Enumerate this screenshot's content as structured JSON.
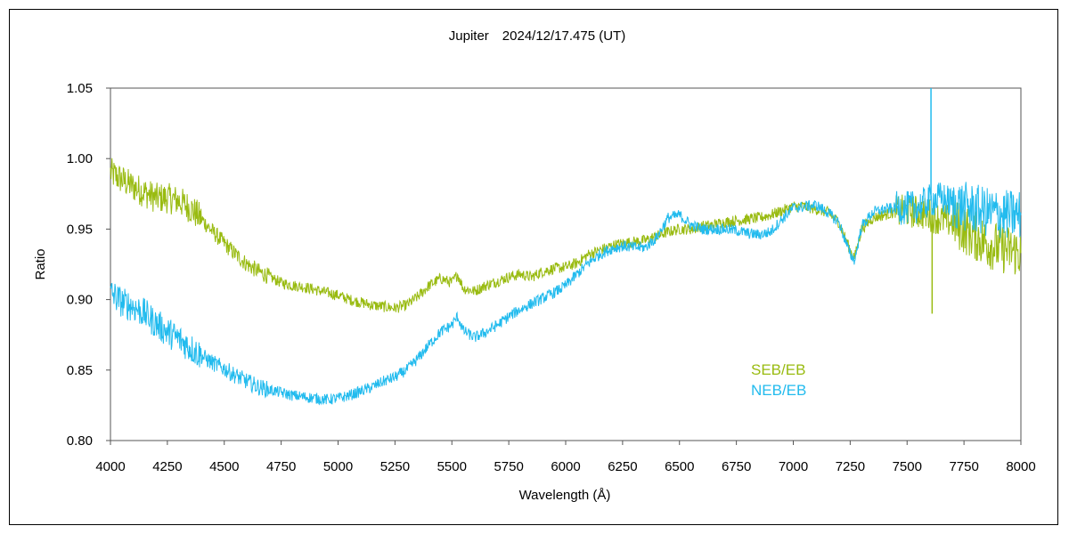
{
  "chart_data": {
    "type": "line",
    "title": "Jupiter　2024/12/17.475 (UT)",
    "xlabel": "Wavelength (Å)",
    "ylabel": "Ratio",
    "xlim": [
      4000,
      8000
    ],
    "ylim": [
      0.8,
      1.05
    ],
    "x_ticks": [
      "4000",
      "4250",
      "4500",
      "4750",
      "5000",
      "5250",
      "5500",
      "5750",
      "6000",
      "6250",
      "6500",
      "6750",
      "7000",
      "7250",
      "7500",
      "7750",
      "8000"
    ],
    "y_ticks": [
      "0.80",
      "0.85",
      "0.90",
      "0.95",
      "1.00",
      "1.05"
    ],
    "grid": false,
    "legend_position": "inside-bottom-right",
    "series": [
      {
        "name": "SEB/EB",
        "color": "#99bb11",
        "x": [
          4000,
          4050,
          4100,
          4150,
          4200,
          4250,
          4300,
          4350,
          4400,
          4450,
          4500,
          4550,
          4600,
          4650,
          4700,
          4750,
          4800,
          4850,
          4900,
          4950,
          5000,
          5050,
          5100,
          5150,
          5200,
          5250,
          5300,
          5350,
          5400,
          5450,
          5500,
          5525,
          5550,
          5600,
          5650,
          5700,
          5750,
          5800,
          5850,
          5900,
          5950,
          6000,
          6050,
          6100,
          6150,
          6200,
          6250,
          6300,
          6350,
          6400,
          6450,
          6500,
          6550,
          6600,
          6650,
          6700,
          6750,
          6800,
          6850,
          6900,
          6950,
          7000,
          7050,
          7100,
          7150,
          7200,
          7250,
          7270,
          7300,
          7350,
          7400,
          7450,
          7500,
          7550,
          7600,
          7650,
          7700,
          7750,
          7800,
          7850,
          7900,
          7950,
          8000
        ],
        "y": [
          0.99,
          0.985,
          0.98,
          0.976,
          0.972,
          0.972,
          0.97,
          0.965,
          0.957,
          0.948,
          0.94,
          0.932,
          0.925,
          0.92,
          0.916,
          0.912,
          0.91,
          0.909,
          0.907,
          0.905,
          0.903,
          0.9,
          0.898,
          0.896,
          0.895,
          0.894,
          0.896,
          0.902,
          0.91,
          0.915,
          0.912,
          0.918,
          0.908,
          0.906,
          0.91,
          0.913,
          0.916,
          0.918,
          0.916,
          0.92,
          0.922,
          0.923,
          0.926,
          0.932,
          0.935,
          0.938,
          0.94,
          0.941,
          0.942,
          0.945,
          0.948,
          0.95,
          0.95,
          0.952,
          0.953,
          0.955,
          0.956,
          0.957,
          0.958,
          0.96,
          0.963,
          0.966,
          0.966,
          0.964,
          0.962,
          0.955,
          0.935,
          0.93,
          0.95,
          0.958,
          0.96,
          0.962,
          0.963,
          0.962,
          0.96,
          0.957,
          0.955,
          0.95,
          0.945,
          0.94,
          0.937,
          0.935,
          0.933
        ]
      },
      {
        "name": "NEB/EB",
        "color": "#22bbee",
        "x": [
          4000,
          4050,
          4100,
          4150,
          4200,
          4250,
          4300,
          4350,
          4400,
          4450,
          4500,
          4550,
          4600,
          4650,
          4700,
          4750,
          4800,
          4850,
          4900,
          4950,
          5000,
          5050,
          5100,
          5150,
          5200,
          5250,
          5300,
          5350,
          5400,
          5450,
          5500,
          5525,
          5550,
          5600,
          5650,
          5700,
          5750,
          5800,
          5850,
          5900,
          5950,
          6000,
          6050,
          6100,
          6150,
          6200,
          6250,
          6300,
          6350,
          6400,
          6450,
          6500,
          6550,
          6600,
          6650,
          6700,
          6750,
          6800,
          6850,
          6900,
          6950,
          7000,
          7050,
          7100,
          7150,
          7200,
          7250,
          7270,
          7300,
          7350,
          7400,
          7450,
          7500,
          7550,
          7600,
          7650,
          7700,
          7750,
          7800,
          7850,
          7900,
          7950,
          8000
        ],
        "y": [
          0.905,
          0.898,
          0.895,
          0.89,
          0.883,
          0.877,
          0.872,
          0.866,
          0.86,
          0.855,
          0.851,
          0.846,
          0.842,
          0.838,
          0.836,
          0.834,
          0.832,
          0.831,
          0.83,
          0.829,
          0.83,
          0.832,
          0.835,
          0.838,
          0.842,
          0.845,
          0.85,
          0.858,
          0.868,
          0.877,
          0.882,
          0.888,
          0.878,
          0.873,
          0.877,
          0.882,
          0.888,
          0.893,
          0.897,
          0.901,
          0.905,
          0.91,
          0.918,
          0.926,
          0.932,
          0.936,
          0.938,
          0.937,
          0.937,
          0.944,
          0.958,
          0.96,
          0.953,
          0.95,
          0.95,
          0.95,
          0.949,
          0.947,
          0.946,
          0.948,
          0.957,
          0.965,
          0.966,
          0.967,
          0.962,
          0.955,
          0.932,
          0.928,
          0.952,
          0.962,
          0.964,
          0.965,
          0.965,
          0.966,
          0.97,
          0.972,
          0.968,
          0.966,
          0.964,
          0.962,
          0.961,
          0.96,
          0.96
        ]
      }
    ],
    "spikes": [
      {
        "series": 1,
        "x": 7605,
        "y": 1.05
      },
      {
        "series": 0,
        "x": 7610,
        "y": 0.89
      }
    ]
  }
}
